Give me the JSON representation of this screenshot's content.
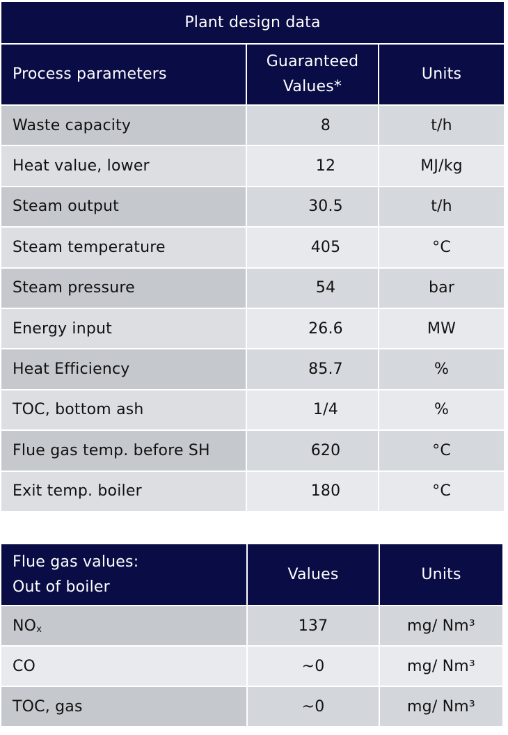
{
  "design_table": {
    "title": "Plant design data",
    "headers": {
      "parameter": "Process parameters",
      "value": "Guaranteed Values*",
      "units": "Units"
    },
    "rows": [
      {
        "parameter": "Waste capacity",
        "value": "8",
        "units": "t/h"
      },
      {
        "parameter": "Heat value, lower",
        "value": "12",
        "units": "MJ/kg"
      },
      {
        "parameter": "Steam output",
        "value": "30.5",
        "units": "t/h"
      },
      {
        "parameter": "Steam temperature",
        "value": "405",
        "units": "°C"
      },
      {
        "parameter": "Steam pressure",
        "value": "54",
        "units": "bar"
      },
      {
        "parameter": "Energy input",
        "value": "26.6",
        "units": "MW"
      },
      {
        "parameter": "Heat Efficiency",
        "value": "85.7",
        "units": "%"
      },
      {
        "parameter": "TOC, bottom ash",
        "value": "1/4",
        "units": "%"
      },
      {
        "parameter": "Flue gas temp. before SH",
        "value": "620",
        "units": "°C"
      },
      {
        "parameter": "Exit temp. boiler",
        "value": "180",
        "units": "°C"
      }
    ]
  },
  "flue_table": {
    "headers": {
      "parameter_line1": "Flue gas values:",
      "parameter_line2": "Out of boiler",
      "value": "Values",
      "units": "Units"
    },
    "rows": [
      {
        "parameter": "NO",
        "parameter_sub": "x",
        "value": "137",
        "units": "mg/ Nm³"
      },
      {
        "parameter": "CO",
        "parameter_sub": "",
        "value": "~0",
        "units": "mg/ Nm³"
      },
      {
        "parameter": "TOC, gas",
        "parameter_sub": "",
        "value": "~0",
        "units": "mg/ Nm³"
      }
    ]
  }
}
